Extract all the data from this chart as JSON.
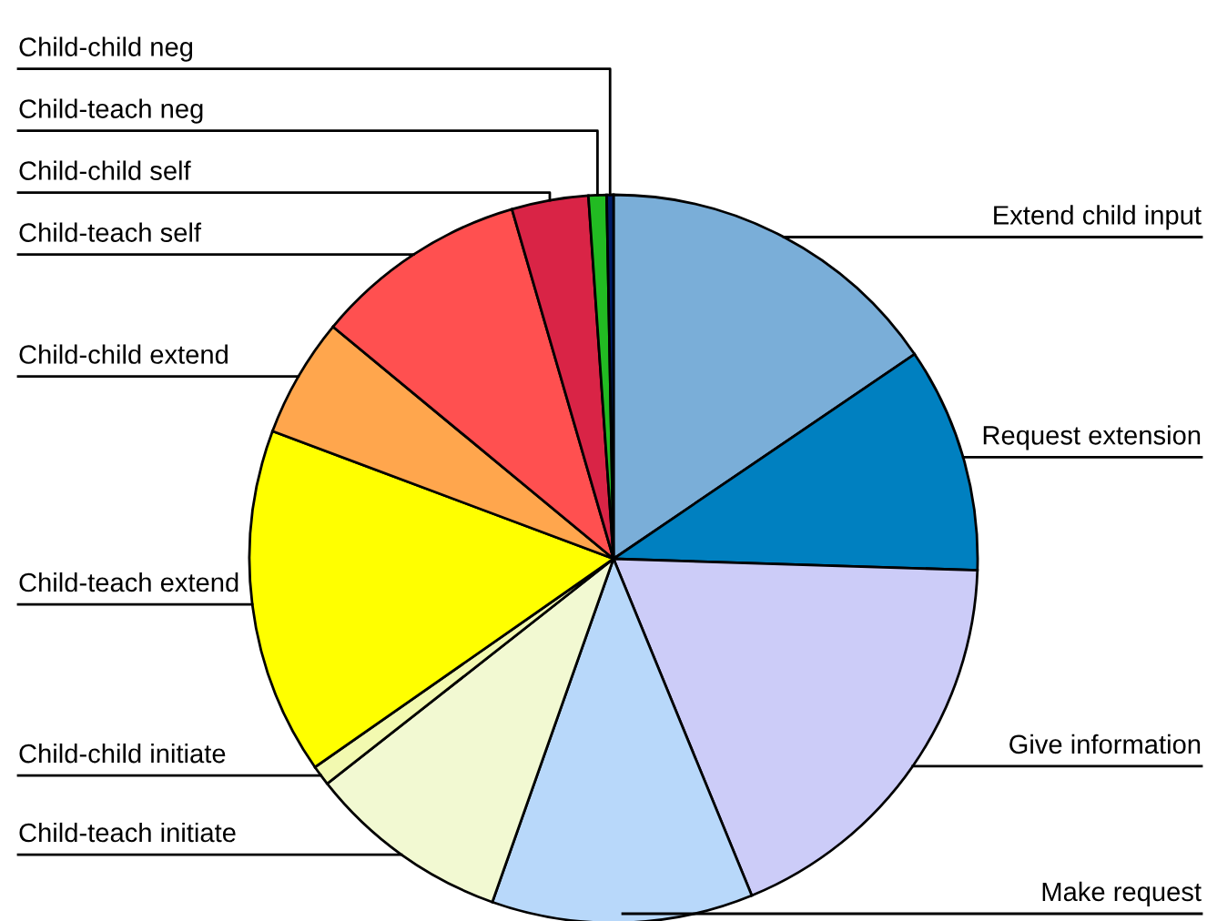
{
  "chart_data": {
    "type": "pie",
    "categories": [
      "Extend child input",
      "Request extension",
      "Give information",
      "Make request",
      "Child-teach initiate",
      "Child-child initiate",
      "Child-teach extend",
      "Child-child extend",
      "Child-teach self",
      "Child-child self",
      "Child-teach neg",
      "Child-child neg"
    ],
    "values": [
      15.5,
      10.0,
      18.3,
      11.6,
      9.0,
      0.9,
      15.4,
      5.3,
      9.5,
      3.4,
      0.8,
      0.3
    ],
    "colors": [
      "#7aaed8",
      "#0080c0",
      "#ccccf8",
      "#b8d8fa",
      "#f2f9d2",
      "#f2f9b0",
      "#ffff00",
      "#ffa64d",
      "#ff5050",
      "#d92446",
      "#22bb22",
      "#001a66"
    ],
    "legend": false
  }
}
